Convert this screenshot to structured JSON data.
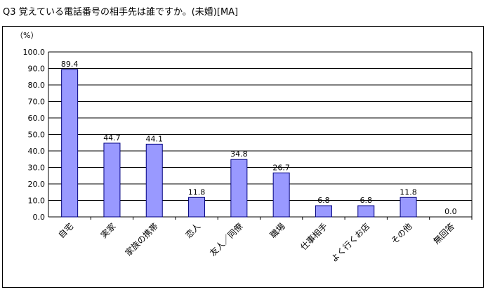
{
  "title": "Q3  覚えている電話番号の相手先は誰ですか。(未婚)[MA]",
  "chart_data": {
    "type": "bar",
    "unit_label": "（%）",
    "categories": [
      "自宅",
      "実家",
      "家族の携帯",
      "恋人",
      "友人／同僚",
      "職場",
      "仕事相手",
      "よく行くお店",
      "その他",
      "無回答"
    ],
    "values": [
      89.4,
      44.7,
      44.1,
      11.8,
      34.8,
      26.7,
      6.8,
      6.8,
      11.8,
      0.0
    ],
    "value_labels": [
      "89.4",
      "44.7",
      "44.1",
      "11.8",
      "34.8",
      "26.7",
      "6.8",
      "6.8",
      "11.8",
      "0.0"
    ],
    "y_ticks": [
      "0.0",
      "10.0",
      "20.0",
      "30.0",
      "40.0",
      "50.0",
      "60.0",
      "70.0",
      "80.0",
      "90.0",
      "100.0"
    ],
    "ylim": [
      0,
      100
    ],
    "grid": true,
    "bar_color": "#9999ff",
    "bar_edge_color": "#000080"
  }
}
